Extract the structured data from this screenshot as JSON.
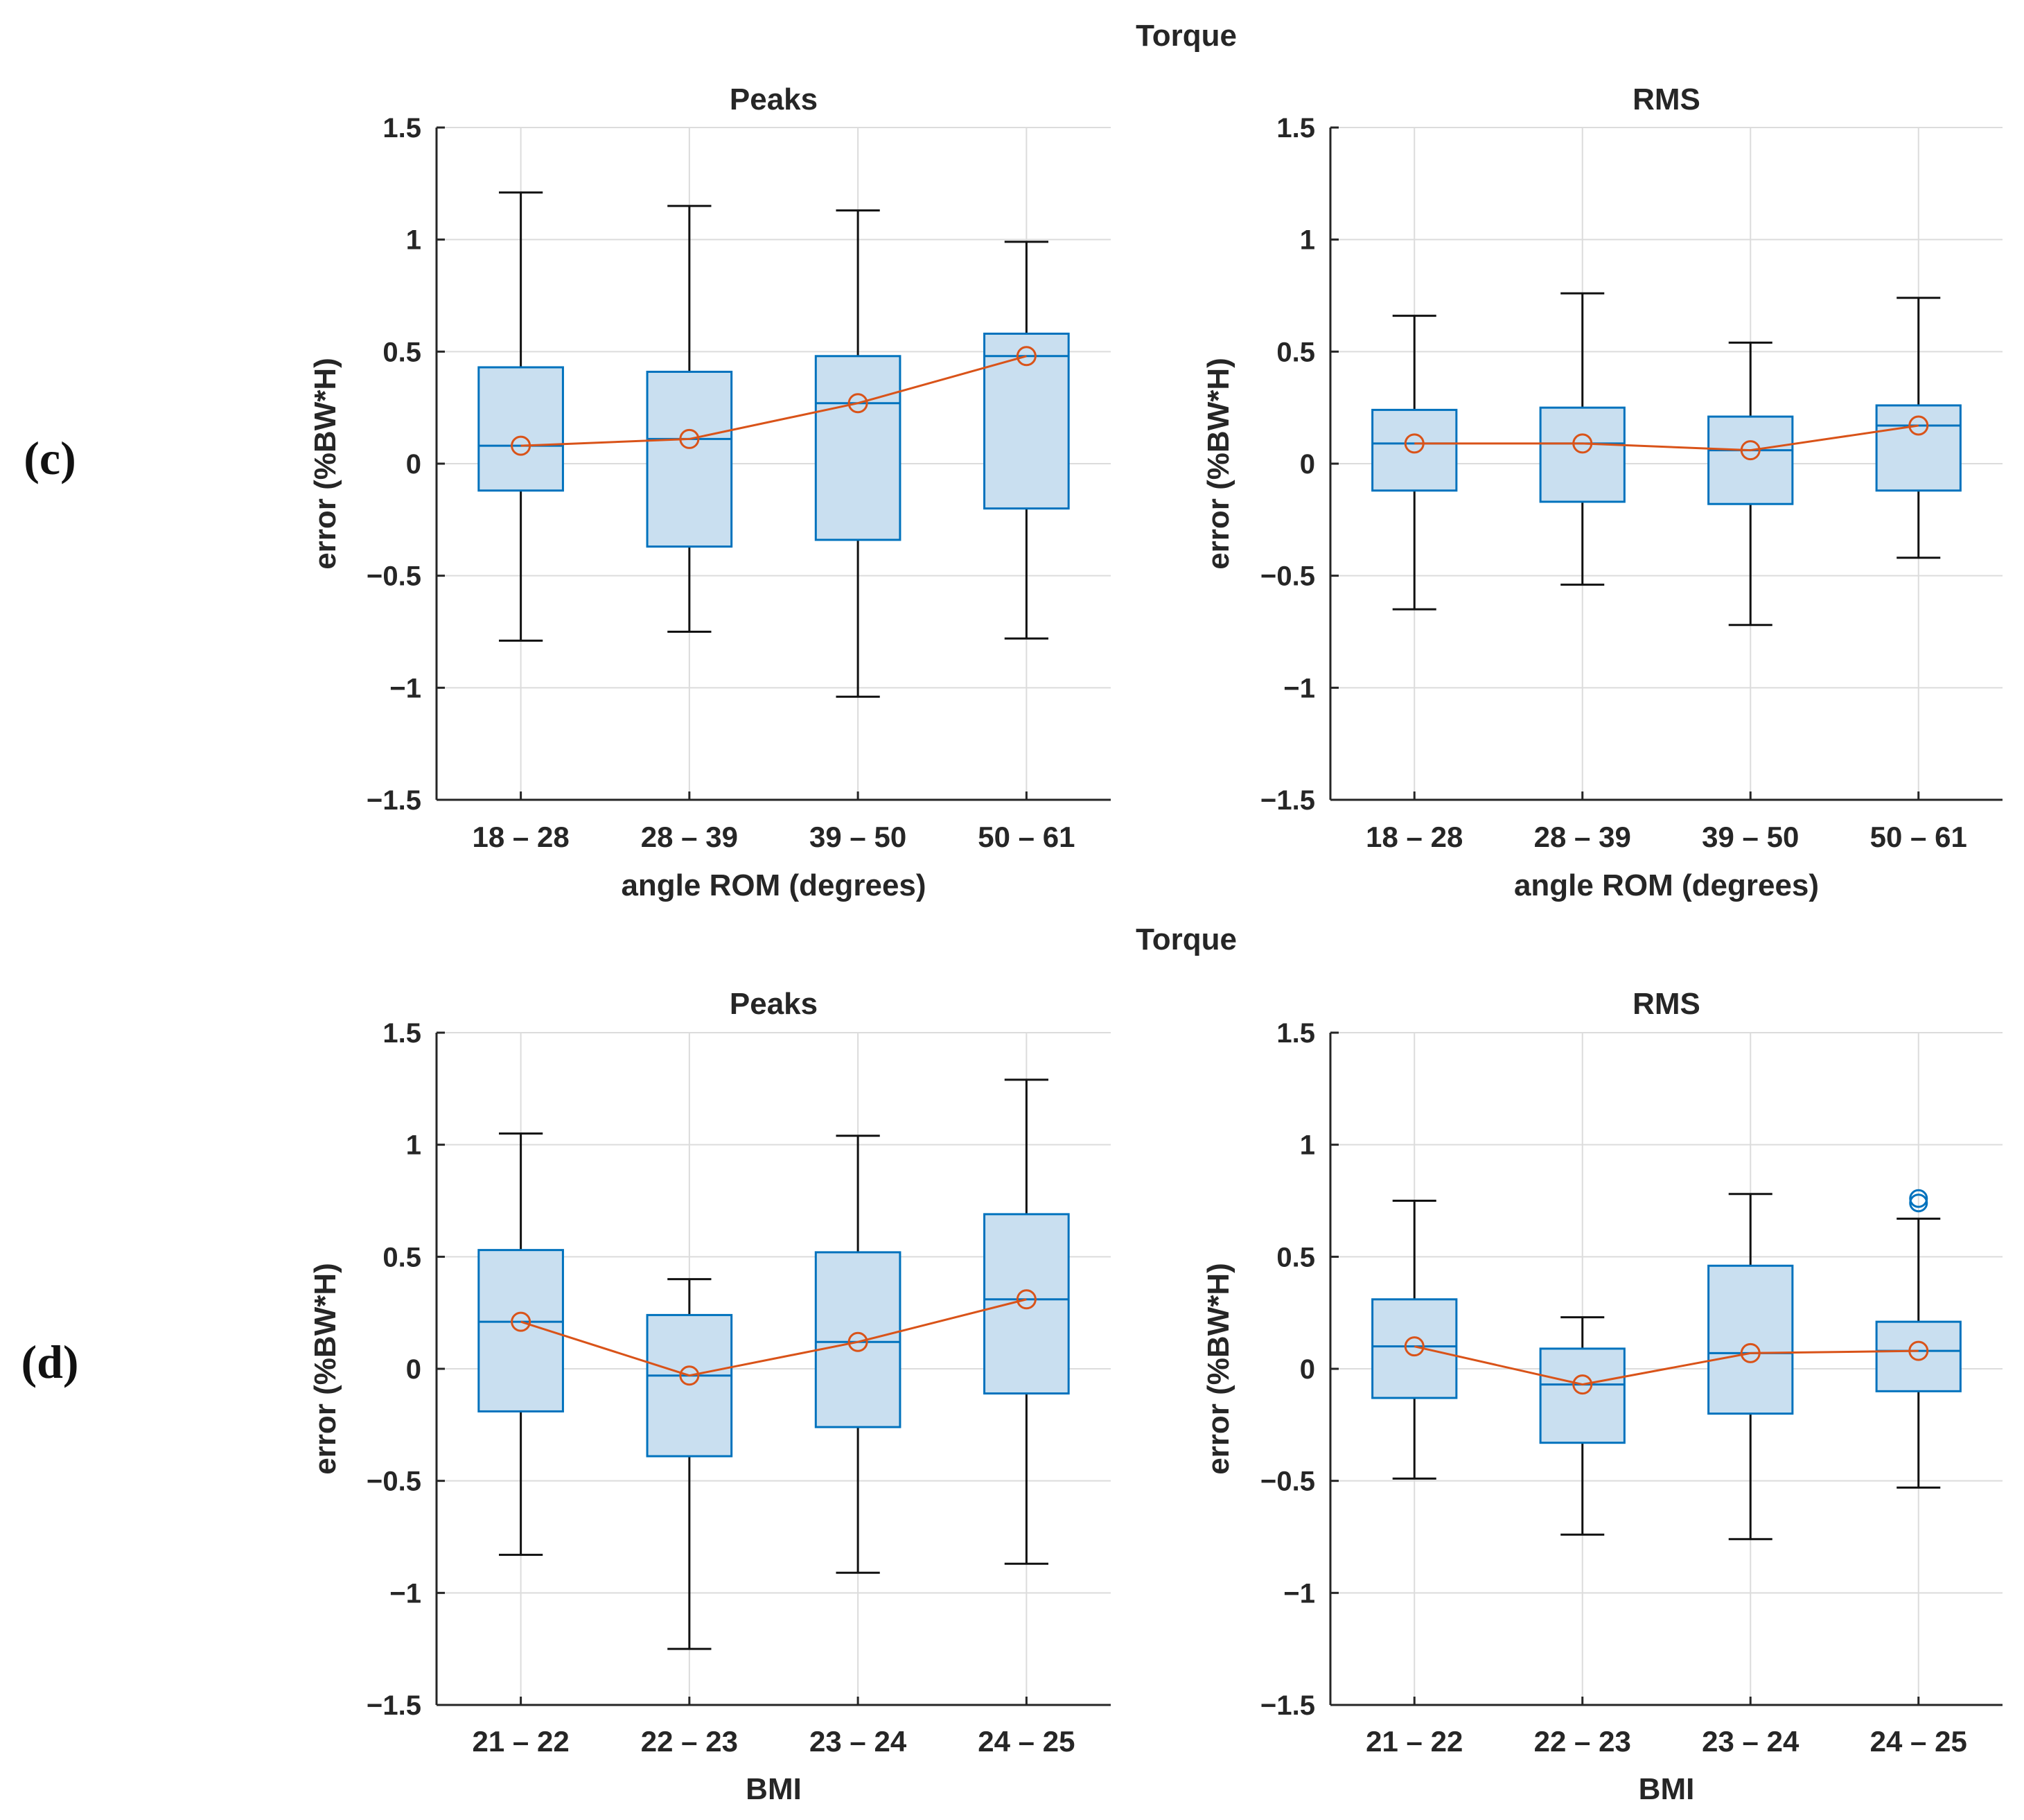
{
  "figure": {
    "panel_labels": [
      "(c)",
      "(d)"
    ],
    "colors": {
      "box_fill": "#c9dff0",
      "box_edge": "#0072bd",
      "whisker": "#111111",
      "mean_line": "#d95319",
      "grid": "#dcdcdc",
      "axis": "#262626"
    }
  },
  "chart_data": [
    {
      "type": "box",
      "panel": "(c)",
      "suptitle": "Torque",
      "title": "Peaks",
      "categories": [
        "18 – 28",
        "28 – 39",
        "39 – 50",
        "50 – 61"
      ],
      "xlabel": "angle ROM (degrees)",
      "ylabel": "error (%BW*H)",
      "ylim": [
        -1.5,
        1.5
      ],
      "yticks": [
        1.5,
        1,
        0.5,
        0,
        -0.5,
        -1,
        -1.5
      ],
      "yticklabels": [
        "1.5",
        "1",
        "0.5",
        "0",
        "−0.5",
        "−1",
        "−1.5"
      ],
      "grid": true,
      "boxes": [
        {
          "whisker_low": -0.79,
          "q1": -0.12,
          "median": 0.08,
          "q3": 0.43,
          "whisker_high": 1.21
        },
        {
          "whisker_low": -0.75,
          "q1": -0.37,
          "median": 0.11,
          "q3": 0.41,
          "whisker_high": 1.15
        },
        {
          "whisker_low": -1.04,
          "q1": -0.34,
          "median": 0.27,
          "q3": 0.48,
          "whisker_high": 1.13
        },
        {
          "whisker_low": -0.78,
          "q1": -0.2,
          "median": 0.48,
          "q3": 0.58,
          "whisker_high": 0.99
        }
      ],
      "means": [
        0.08,
        0.11,
        0.27,
        0.48
      ],
      "outliers": [
        [],
        [],
        [],
        []
      ]
    },
    {
      "type": "box",
      "panel": "(c)",
      "title": "RMS",
      "categories": [
        "18 – 28",
        "28 – 39",
        "39 – 50",
        "50 – 61"
      ],
      "xlabel": "angle ROM (degrees)",
      "ylabel": "error (%BW*H)",
      "ylim": [
        -1.5,
        1.5
      ],
      "yticks": [
        1.5,
        1,
        0.5,
        0,
        -0.5,
        -1,
        -1.5
      ],
      "yticklabels": [
        "1.5",
        "1",
        "0.5",
        "0",
        "−0.5",
        "−1",
        "−1.5"
      ],
      "grid": true,
      "boxes": [
        {
          "whisker_low": -0.65,
          "q1": -0.12,
          "median": 0.09,
          "q3": 0.24,
          "whisker_high": 0.66
        },
        {
          "whisker_low": -0.54,
          "q1": -0.17,
          "median": 0.09,
          "q3": 0.25,
          "whisker_high": 0.76
        },
        {
          "whisker_low": -0.72,
          "q1": -0.18,
          "median": 0.06,
          "q3": 0.21,
          "whisker_high": 0.54
        },
        {
          "whisker_low": -0.42,
          "q1": -0.12,
          "median": 0.17,
          "q3": 0.26,
          "whisker_high": 0.74
        }
      ],
      "means": [
        0.09,
        0.09,
        0.06,
        0.17
      ],
      "outliers": [
        [],
        [],
        [],
        []
      ]
    },
    {
      "type": "box",
      "panel": "(d)",
      "suptitle": "Torque",
      "title": "Peaks",
      "categories": [
        "21 – 22",
        "22 – 23",
        "23 – 24",
        "24 – 25"
      ],
      "xlabel": "BMI",
      "ylabel": "error (%BW*H)",
      "ylim": [
        -1.5,
        1.5
      ],
      "yticks": [
        1.5,
        1,
        0.5,
        0,
        -0.5,
        -1,
        -1.5
      ],
      "yticklabels": [
        "1.5",
        "1",
        "0.5",
        "0",
        "−0.5",
        "−1",
        "−1.5"
      ],
      "grid": true,
      "boxes": [
        {
          "whisker_low": -0.83,
          "q1": -0.19,
          "median": 0.21,
          "q3": 0.53,
          "whisker_high": 1.05
        },
        {
          "whisker_low": -1.25,
          "q1": -0.39,
          "median": -0.03,
          "q3": 0.24,
          "whisker_high": 0.4
        },
        {
          "whisker_low": -0.91,
          "q1": -0.26,
          "median": 0.12,
          "q3": 0.52,
          "whisker_high": 1.04
        },
        {
          "whisker_low": -0.87,
          "q1": -0.11,
          "median": 0.31,
          "q3": 0.69,
          "whisker_high": 1.29
        }
      ],
      "means": [
        0.21,
        -0.03,
        0.12,
        0.31
      ],
      "outliers": [
        [],
        [],
        [],
        []
      ]
    },
    {
      "type": "box",
      "panel": "(d)",
      "title": "RMS",
      "categories": [
        "21 – 22",
        "22 – 23",
        "23 – 24",
        "24 – 25"
      ],
      "xlabel": "BMI",
      "ylabel": "error (%BW*H)",
      "ylim": [
        -1.5,
        1.5
      ],
      "yticks": [
        1.5,
        1,
        0.5,
        0,
        -0.5,
        -1,
        -1.5
      ],
      "yticklabels": [
        "1.5",
        "1",
        "0.5",
        "0",
        "−0.5",
        "−1",
        "−1.5"
      ],
      "grid": true,
      "boxes": [
        {
          "whisker_low": -0.49,
          "q1": -0.13,
          "median": 0.1,
          "q3": 0.31,
          "whisker_high": 0.75
        },
        {
          "whisker_low": -0.74,
          "q1": -0.33,
          "median": -0.07,
          "q3": 0.09,
          "whisker_high": 0.23
        },
        {
          "whisker_low": -0.76,
          "q1": -0.2,
          "median": 0.07,
          "q3": 0.46,
          "whisker_high": 0.78
        },
        {
          "whisker_low": -0.53,
          "q1": -0.1,
          "median": 0.08,
          "q3": 0.21,
          "whisker_high": 0.67
        }
      ],
      "means": [
        0.1,
        -0.07,
        0.07,
        0.08
      ],
      "outliers": [
        [],
        [],
        [],
        [
          0.74,
          0.76
        ]
      ]
    }
  ]
}
